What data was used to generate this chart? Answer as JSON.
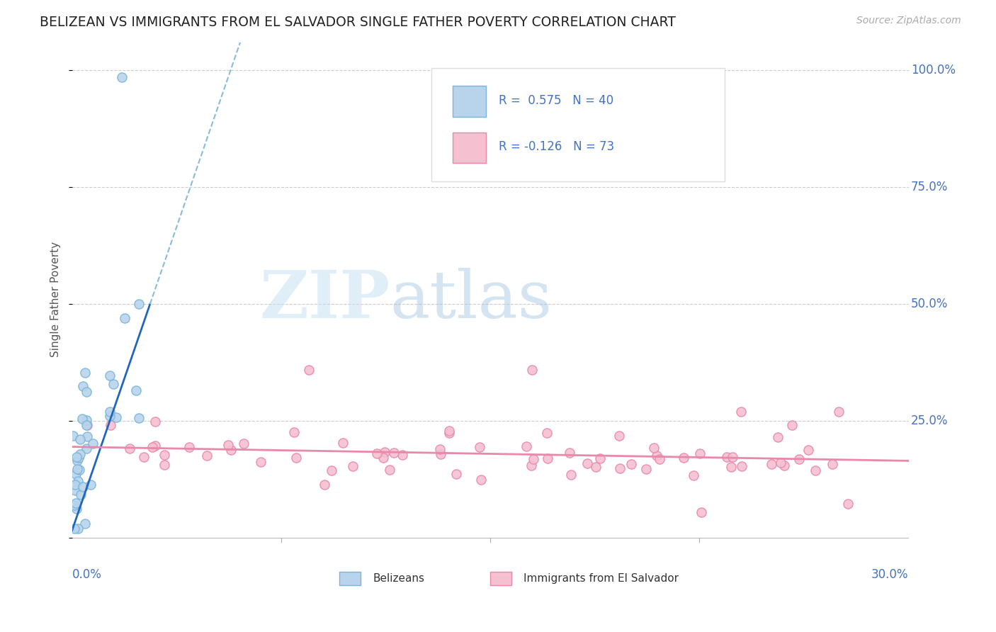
{
  "title": "BELIZEAN VS IMMIGRANTS FROM EL SALVADOR SINGLE FATHER POVERTY CORRELATION CHART",
  "source": "Source: ZipAtlas.com",
  "ylabel": "Single Father Poverty",
  "xlim": [
    0.0,
    0.3
  ],
  "ylim": [
    0.0,
    1.0
  ],
  "blue_color": "#7ab4d8",
  "blue_fill": "#b8d4ec",
  "pink_color": "#e888aa",
  "pink_fill": "#f5c0d0",
  "blue_line_color": "#2266bb",
  "pink_line_color": "#e888aa",
  "grid_color": "#cccccc",
  "ytick_color": "#4472c4",
  "watermark_zip_color": "#c5dff0",
  "watermark_atlas_color": "#a8c8e8"
}
